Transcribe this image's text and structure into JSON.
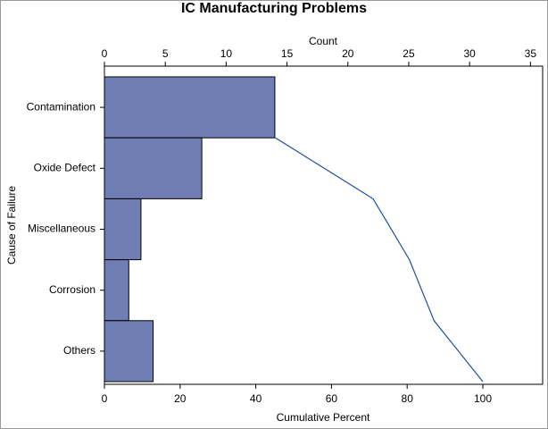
{
  "chart_data": {
    "type": "pareto",
    "title": "IC Manufacturing Problems",
    "y_label": "Cause of Failure",
    "categories": [
      "Contamination",
      "Oxide Defect",
      "Miscellaneous",
      "Corrosion",
      "Others"
    ],
    "series": [
      {
        "name": "Count",
        "color": "#6f7fb5",
        "values": [
          14,
          8,
          3,
          2,
          4
        ]
      },
      {
        "name": "Cumulative Percent",
        "color": "#1f4e9a",
        "values": [
          45.2,
          71.0,
          80.6,
          87.1,
          100
        ]
      }
    ],
    "xlim": [
      0,
      36
    ],
    "xticks": [
      0,
      5,
      10,
      15,
      20,
      25,
      30,
      35
    ],
    "x2lim": [
      0,
      115.8
    ],
    "x2ticks": [
      0,
      20,
      40,
      60,
      80,
      100
    ]
  }
}
